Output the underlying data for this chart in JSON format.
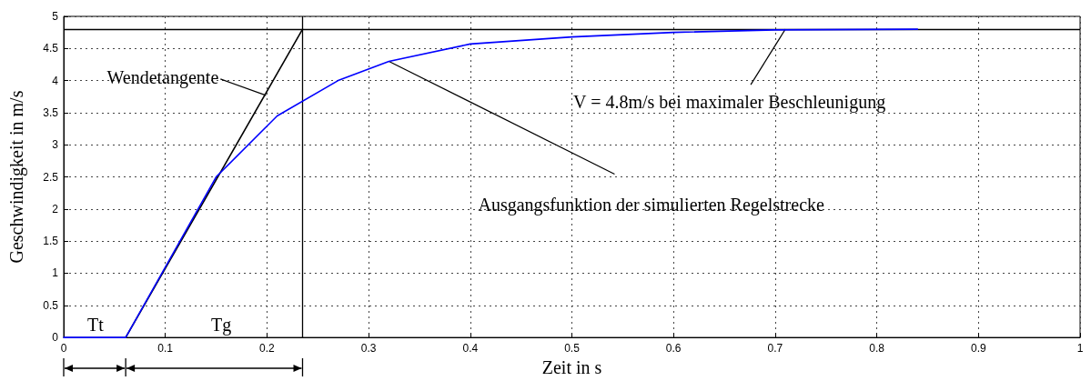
{
  "chart_data": {
    "type": "line",
    "xlabel": "Zeit in s",
    "ylabel": "Geschwindigkeit in m/s",
    "xlim": [
      0,
      1
    ],
    "xticks": [
      0,
      0.1,
      0.2,
      0.3,
      0.4,
      0.5,
      0.6,
      0.7,
      0.8,
      0.9,
      1
    ],
    "ylim": [
      0,
      5
    ],
    "yticks": [
      0,
      0.5,
      1,
      1.5,
      2,
      2.5,
      3,
      3.5,
      4,
      4.5,
      5
    ],
    "series": [
      {
        "color": "#0000ff",
        "x": [
          0,
          0.061,
          0.15,
          0.21,
          0.27,
          0.32,
          0.4,
          0.5,
          0.6,
          0.7,
          0.84
        ],
        "values": [
          0,
          0,
          2.5,
          3.45,
          4.0,
          4.3,
          4.57,
          4.68,
          4.75,
          4.79,
          4.8
        ]
      },
      {
        "color": "#000000",
        "x": [
          0.061,
          0.235
        ],
        "values": [
          0,
          4.8
        ]
      }
    ],
    "ref_lines": [
      {
        "axis": "y",
        "value": 4.8,
        "label": null,
        "color": "#000000"
      },
      {
        "axis": "x",
        "value": 0.235,
        "label": null,
        "color": "#000000"
      }
    ],
    "annotations": [
      {
        "text": "Wendetangente",
        "x": 0.199,
        "y": 3.77
      },
      {
        "text": "Ausgangsfunktion der simulierten Regelstrecke",
        "x": 0.32,
        "y": 4.3
      },
      {
        "text": "V = 4.8m/s bei maximaler Beschleunigung",
        "x": 0.71,
        "y": 4.8
      },
      "Tt",
      "Tg"
    ],
    "grid": true,
    "marker": "none",
    "line_style": "solid"
  }
}
